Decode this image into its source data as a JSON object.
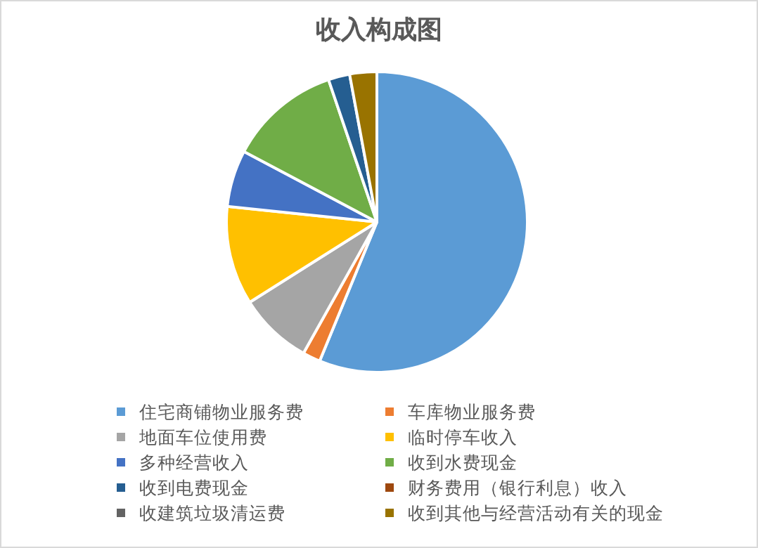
{
  "chart_data": {
    "type": "pie",
    "title": "收入构成图",
    "categories": [
      "住宅商铺物业服务费",
      "车库物业服务费",
      "地面车位使用费",
      "临时停车收入",
      "多种经营收入",
      "收到水费现金",
      "收到电费现金",
      "财务费用（银行利息）收入",
      "收建筑垃圾清运费",
      "收到其他与经营活动有关的现金"
    ],
    "values": [
      56.1,
      1.9,
      7.9,
      10.6,
      6.1,
      12.0,
      2.3,
      0,
      0,
      2.9
    ],
    "colors": [
      "#5b9bd5",
      "#ed7d31",
      "#a5a5a5",
      "#ffc000",
      "#4472c4",
      "#70ad47",
      "#255e91",
      "#9e480e",
      "#636363",
      "#997300"
    ],
    "legend": "bottom"
  }
}
